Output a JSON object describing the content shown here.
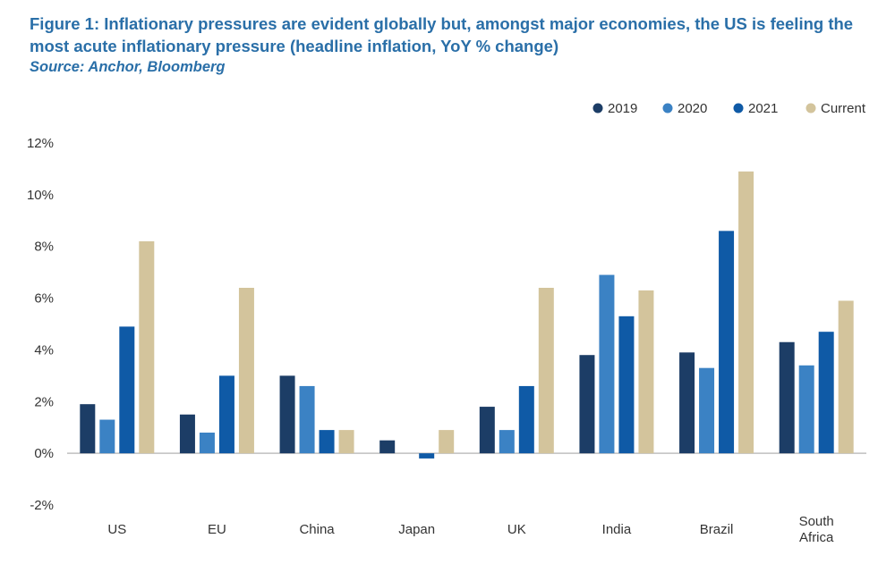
{
  "figure": {
    "title": "Figure 1: Inflationary pressures are evident globally but, amongst major economies, the US is feeling the most acute inflationary pressure (headline inflation, YoY % change)",
    "source": "Source: Anchor, Bloomberg"
  },
  "chart_data": {
    "type": "bar",
    "categories": [
      [
        "US"
      ],
      [
        "EU"
      ],
      [
        "China"
      ],
      [
        "Japan"
      ],
      [
        "UK"
      ],
      [
        "India"
      ],
      [
        "Brazil"
      ],
      [
        "South",
        "Africa"
      ]
    ],
    "series": [
      {
        "name": "2019",
        "color": "#1c3d66",
        "values": [
          1.9,
          1.5,
          3.0,
          0.5,
          1.8,
          3.8,
          3.9,
          4.3
        ]
      },
      {
        "name": "2020",
        "color": "#3b82c4",
        "values": [
          1.3,
          0.8,
          2.6,
          0.0,
          0.9,
          6.9,
          3.3,
          3.4
        ]
      },
      {
        "name": "2021",
        "color": "#0f5aa6",
        "values": [
          4.9,
          3.0,
          0.9,
          -0.2,
          2.6,
          5.3,
          8.6,
          4.7
        ]
      },
      {
        "name": "Current",
        "color": "#d3c49c",
        "values": [
          8.2,
          6.4,
          0.9,
          0.9,
          6.4,
          6.3,
          10.9,
          5.9
        ]
      }
    ],
    "ylim": [
      -2,
      12
    ],
    "yticks": [
      -2,
      0,
      2,
      4,
      6,
      8,
      10,
      12
    ],
    "ytick_labels": [
      "-2%",
      "0%",
      "2%",
      "4%",
      "6%",
      "8%",
      "10%",
      "12%"
    ],
    "legend_position": "top-right",
    "grid": false,
    "baseline_color": "#bfbfbf"
  }
}
